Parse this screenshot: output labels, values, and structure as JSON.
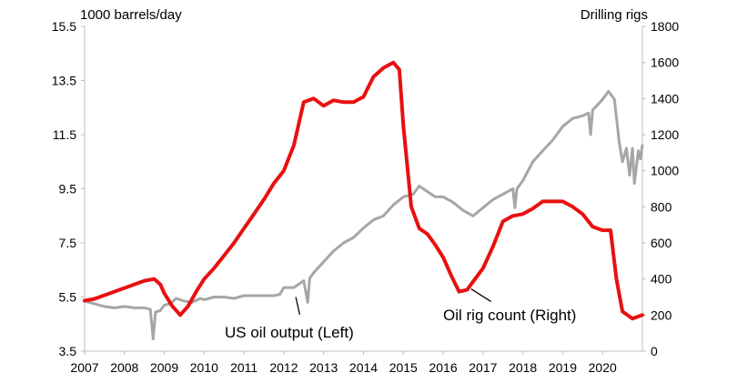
{
  "chart_data": {
    "type": "line",
    "left_axis_label": "1000 barrels/day",
    "right_axis_label": "Drilling rigs",
    "x_ticks": [
      "2007",
      "2008",
      "2009",
      "2010",
      "2011",
      "2012",
      "2013",
      "2014",
      "2015",
      "2016",
      "2017",
      "2018",
      "2019",
      "2020"
    ],
    "left_ticks": [
      "3.5",
      "5.5",
      "7.5",
      "9.5",
      "11.5",
      "13.5",
      "15.5"
    ],
    "right_ticks": [
      "0",
      "200",
      "400",
      "600",
      "800",
      "1000",
      "1200",
      "1400",
      "1600",
      "1800"
    ],
    "ylim_left": [
      3.5,
      15.5
    ],
    "ylim_right": [
      0,
      1800
    ],
    "xlim": [
      2007,
      2021
    ],
    "grid": false,
    "annotations": [
      {
        "text": "US oil output (Left)"
      },
      {
        "text": "Oil rig count (Right)"
      }
    ],
    "series": [
      {
        "name": "US oil output (Left)",
        "axis": "left",
        "color": "#a6a6a6",
        "points": [
          [
            2007.0,
            5.35
          ],
          [
            2007.25,
            5.25
          ],
          [
            2007.5,
            5.15
          ],
          [
            2007.75,
            5.1
          ],
          [
            2008.0,
            5.15
          ],
          [
            2008.25,
            5.1
          ],
          [
            2008.5,
            5.1
          ],
          [
            2008.65,
            5.05
          ],
          [
            2008.72,
            3.95
          ],
          [
            2008.78,
            4.95
          ],
          [
            2008.9,
            5.0
          ],
          [
            2009.0,
            5.2
          ],
          [
            2009.15,
            5.25
          ],
          [
            2009.3,
            5.45
          ],
          [
            2009.5,
            5.35
          ],
          [
            2009.7,
            5.3
          ],
          [
            2009.9,
            5.45
          ],
          [
            2010.0,
            5.4
          ],
          [
            2010.25,
            5.5
          ],
          [
            2010.5,
            5.5
          ],
          [
            2010.75,
            5.45
          ],
          [
            2011.0,
            5.55
          ],
          [
            2011.25,
            5.55
          ],
          [
            2011.5,
            5.55
          ],
          [
            2011.75,
            5.55
          ],
          [
            2011.9,
            5.6
          ],
          [
            2012.0,
            5.85
          ],
          [
            2012.25,
            5.85
          ],
          [
            2012.5,
            6.1
          ],
          [
            2012.6,
            5.3
          ],
          [
            2012.65,
            6.2
          ],
          [
            2012.75,
            6.4
          ],
          [
            2013.0,
            6.8
          ],
          [
            2013.25,
            7.2
          ],
          [
            2013.5,
            7.5
          ],
          [
            2013.75,
            7.7
          ],
          [
            2014.0,
            8.05
          ],
          [
            2014.25,
            8.35
          ],
          [
            2014.5,
            8.5
          ],
          [
            2014.75,
            8.9
          ],
          [
            2015.0,
            9.2
          ],
          [
            2015.25,
            9.3
          ],
          [
            2015.4,
            9.6
          ],
          [
            2015.6,
            9.4
          ],
          [
            2015.8,
            9.2
          ],
          [
            2016.0,
            9.2
          ],
          [
            2016.25,
            9.0
          ],
          [
            2016.5,
            8.7
          ],
          [
            2016.75,
            8.5
          ],
          [
            2017.0,
            8.8
          ],
          [
            2017.25,
            9.1
          ],
          [
            2017.5,
            9.3
          ],
          [
            2017.75,
            9.5
          ],
          [
            2017.8,
            8.8
          ],
          [
            2017.85,
            9.5
          ],
          [
            2018.0,
            9.8
          ],
          [
            2018.25,
            10.5
          ],
          [
            2018.5,
            10.9
          ],
          [
            2018.75,
            11.3
          ],
          [
            2019.0,
            11.8
          ],
          [
            2019.25,
            12.1
          ],
          [
            2019.5,
            12.2
          ],
          [
            2019.65,
            12.3
          ],
          [
            2019.7,
            11.5
          ],
          [
            2019.75,
            12.4
          ],
          [
            2020.0,
            12.8
          ],
          [
            2020.15,
            13.1
          ],
          [
            2020.3,
            12.8
          ],
          [
            2020.42,
            11.2
          ],
          [
            2020.5,
            10.5
          ],
          [
            2020.6,
            11.0
          ],
          [
            2020.68,
            10.0
          ],
          [
            2020.75,
            11.0
          ],
          [
            2020.8,
            9.7
          ],
          [
            2020.9,
            10.9
          ],
          [
            2020.95,
            10.6
          ],
          [
            2021.0,
            11.1
          ]
        ]
      },
      {
        "name": "Oil rig count (Right)",
        "axis": "right",
        "color": "#e81010",
        "points": [
          [
            2007.0,
            280
          ],
          [
            2007.25,
            290
          ],
          [
            2007.5,
            310
          ],
          [
            2007.75,
            330
          ],
          [
            2008.0,
            350
          ],
          [
            2008.25,
            370
          ],
          [
            2008.5,
            390
          ],
          [
            2008.75,
            400
          ],
          [
            2008.9,
            370
          ],
          [
            2009.0,
            320
          ],
          [
            2009.2,
            250
          ],
          [
            2009.4,
            200
          ],
          [
            2009.6,
            250
          ],
          [
            2009.8,
            330
          ],
          [
            2010.0,
            400
          ],
          [
            2010.25,
            460
          ],
          [
            2010.5,
            530
          ],
          [
            2010.75,
            600
          ],
          [
            2011.0,
            680
          ],
          [
            2011.25,
            760
          ],
          [
            2011.5,
            840
          ],
          [
            2011.75,
            930
          ],
          [
            2012.0,
            1000
          ],
          [
            2012.25,
            1140
          ],
          [
            2012.5,
            1380
          ],
          [
            2012.75,
            1400
          ],
          [
            2013.0,
            1360
          ],
          [
            2013.25,
            1390
          ],
          [
            2013.5,
            1380
          ],
          [
            2013.75,
            1380
          ],
          [
            2014.0,
            1410
          ],
          [
            2014.25,
            1520
          ],
          [
            2014.5,
            1570
          ],
          [
            2014.75,
            1600
          ],
          [
            2014.9,
            1560
          ],
          [
            2015.0,
            1250
          ],
          [
            2015.2,
            800
          ],
          [
            2015.4,
            680
          ],
          [
            2015.6,
            650
          ],
          [
            2015.8,
            590
          ],
          [
            2016.0,
            520
          ],
          [
            2016.2,
            420
          ],
          [
            2016.4,
            330
          ],
          [
            2016.6,
            340
          ],
          [
            2016.8,
            400
          ],
          [
            2017.0,
            460
          ],
          [
            2017.25,
            580
          ],
          [
            2017.5,
            720
          ],
          [
            2017.75,
            750
          ],
          [
            2018.0,
            760
          ],
          [
            2018.25,
            790
          ],
          [
            2018.5,
            830
          ],
          [
            2018.75,
            830
          ],
          [
            2019.0,
            830
          ],
          [
            2019.25,
            800
          ],
          [
            2019.5,
            760
          ],
          [
            2019.75,
            690
          ],
          [
            2020.0,
            670
          ],
          [
            2020.2,
            670
          ],
          [
            2020.35,
            400
          ],
          [
            2020.5,
            220
          ],
          [
            2020.75,
            180
          ],
          [
            2021.0,
            200
          ]
        ]
      }
    ]
  }
}
